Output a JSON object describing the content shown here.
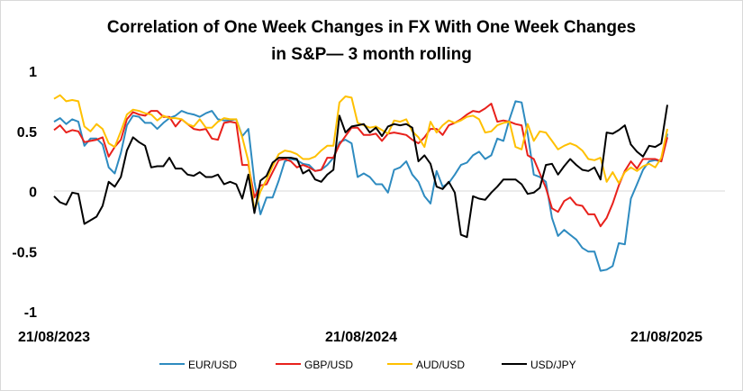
{
  "chart_data": {
    "type": "line",
    "title": "Correlation of One Week Changes in FX With One Week Changes",
    "title_line2": "in S&P— 3 month rolling",
    "xlabel": "",
    "ylabel": "",
    "ylim": [
      -1,
      1
    ],
    "y_ticks": [
      "1",
      "0.5",
      "0",
      "-0.5",
      "-1"
    ],
    "x_ticks": [
      "21/08/2023",
      "21/08/2024",
      "21/08/2025"
    ],
    "grid": false,
    "legend_position": "bottom",
    "series": [
      {
        "name": "EUR/USD",
        "color": "#2E8BC0",
        "values": [
          0.58,
          0.61,
          0.56,
          0.6,
          0.58,
          0.38,
          0.44,
          0.44,
          0.39,
          0.2,
          0.15,
          0.32,
          0.55,
          0.63,
          0.62,
          0.57,
          0.57,
          0.52,
          0.57,
          0.61,
          0.63,
          0.67,
          0.65,
          0.64,
          0.62,
          0.65,
          0.67,
          0.6,
          0.59,
          0.59,
          0.6,
          0.46,
          0.52,
          0.08,
          -0.19,
          -0.05,
          -0.05,
          0.09,
          0.25,
          0.27,
          0.26,
          0.23,
          0.22,
          0.17,
          0.18,
          0.22,
          0.28,
          0.41,
          0.43,
          0.4,
          0.12,
          0.15,
          0.12,
          0.06,
          0.06,
          -0.01,
          0.18,
          0.2,
          0.25,
          0.14,
          0.08,
          -0.04,
          -0.1,
          0.17,
          0.04,
          0.07,
          0.14,
          0.22,
          0.24,
          0.3,
          0.33,
          0.27,
          0.3,
          0.44,
          0.42,
          0.6,
          0.75,
          0.74,
          0.48,
          0.14,
          0.12,
          0.08,
          -0.22,
          -0.37,
          -0.32,
          -0.36,
          -0.4,
          -0.47,
          -0.5,
          -0.5,
          -0.66,
          -0.65,
          -0.62,
          -0.43,
          -0.44,
          -0.06,
          0.06,
          0.18,
          0.25,
          0.26,
          0.25,
          0.48
        ]
      },
      {
        "name": "GBP/USD",
        "color": "#E8211C",
        "values": [
          0.51,
          0.55,
          0.49,
          0.51,
          0.5,
          0.41,
          0.42,
          0.43,
          0.45,
          0.29,
          0.37,
          0.43,
          0.6,
          0.66,
          0.64,
          0.63,
          0.67,
          0.67,
          0.62,
          0.62,
          0.54,
          0.6,
          0.56,
          0.52,
          0.51,
          0.52,
          0.44,
          0.43,
          0.57,
          0.58,
          0.57,
          0.22,
          0.22,
          -0.05,
          0.05,
          0.06,
          0.16,
          0.26,
          0.27,
          0.25,
          0.2,
          0.22,
          0.2,
          0.17,
          0.18,
          0.28,
          0.28,
          0.39,
          0.46,
          0.53,
          0.53,
          0.47,
          0.47,
          0.48,
          0.42,
          0.48,
          0.49,
          0.48,
          0.47,
          0.43,
          0.4,
          0.45,
          0.52,
          0.52,
          0.47,
          0.55,
          0.57,
          0.6,
          0.64,
          0.67,
          0.66,
          0.69,
          0.73,
          0.58,
          0.59,
          0.58,
          0.56,
          0.55,
          0.3,
          0.27,
          0.15,
          0.03,
          -0.14,
          -0.17,
          -0.08,
          -0.05,
          -0.11,
          -0.12,
          -0.19,
          -0.19,
          -0.29,
          -0.22,
          -0.1,
          0.05,
          0.17,
          0.25,
          0.19,
          0.27,
          0.27,
          0.27,
          0.25,
          0.45
        ]
      },
      {
        "name": "AUD/USD",
        "color": "#FFC000",
        "values": [
          0.77,
          0.8,
          0.75,
          0.76,
          0.75,
          0.54,
          0.5,
          0.56,
          0.52,
          0.4,
          0.37,
          0.5,
          0.64,
          0.68,
          0.67,
          0.65,
          0.64,
          0.59,
          0.63,
          0.61,
          0.61,
          0.6,
          0.56,
          0.54,
          0.6,
          0.53,
          0.53,
          0.58,
          0.61,
          0.6,
          0.6,
          0.45,
          0.25,
          -0.16,
          0.0,
          0.1,
          0.21,
          0.31,
          0.34,
          0.33,
          0.31,
          0.27,
          0.27,
          0.29,
          0.34,
          0.38,
          0.38,
          0.74,
          0.79,
          0.78,
          0.57,
          0.55,
          0.53,
          0.54,
          0.51,
          0.48,
          0.59,
          0.58,
          0.6,
          0.5,
          0.45,
          0.37,
          0.58,
          0.49,
          0.55,
          0.59,
          0.57,
          0.59,
          0.62,
          0.63,
          0.6,
          0.49,
          0.5,
          0.55,
          0.57,
          0.58,
          0.37,
          0.35,
          0.56,
          0.42,
          0.5,
          0.49,
          0.42,
          0.35,
          0.38,
          0.4,
          0.38,
          0.34,
          0.27,
          0.26,
          0.28,
          0.08,
          0.16,
          0.07,
          0.16,
          0.2,
          0.17,
          0.21,
          0.23,
          0.2,
          0.28,
          0.52
        ]
      },
      {
        "name": "USD/JPY",
        "color": "#000000",
        "values": [
          -0.04,
          -0.09,
          -0.11,
          -0.01,
          -0.02,
          -0.27,
          -0.24,
          -0.21,
          -0.12,
          0.08,
          0.04,
          0.12,
          0.34,
          0.45,
          0.41,
          0.38,
          0.2,
          0.21,
          0.21,
          0.28,
          0.19,
          0.19,
          0.14,
          0.13,
          0.16,
          0.12,
          0.12,
          0.14,
          0.06,
          0.08,
          0.06,
          -0.06,
          0.14,
          -0.18,
          0.09,
          0.13,
          0.24,
          0.28,
          0.28,
          0.28,
          0.27,
          0.15,
          0.18,
          0.1,
          0.08,
          0.14,
          0.18,
          0.63,
          0.49,
          0.54,
          0.55,
          0.56,
          0.49,
          0.53,
          0.46,
          0.54,
          0.56,
          0.55,
          0.56,
          0.53,
          0.25,
          0.3,
          0.23,
          0.04,
          0.02,
          0.08,
          -0.01,
          -0.36,
          -0.38,
          -0.04,
          -0.06,
          -0.07,
          -0.01,
          0.04,
          0.1,
          0.1,
          0.1,
          0.06,
          -0.02,
          -0.01,
          0.03,
          0.22,
          0.23,
          0.14,
          0.21,
          0.27,
          0.22,
          0.18,
          0.17,
          0.2,
          0.1,
          0.49,
          0.48,
          0.51,
          0.55,
          0.39,
          0.33,
          0.29,
          0.38,
          0.37,
          0.4,
          0.72
        ]
      }
    ]
  }
}
